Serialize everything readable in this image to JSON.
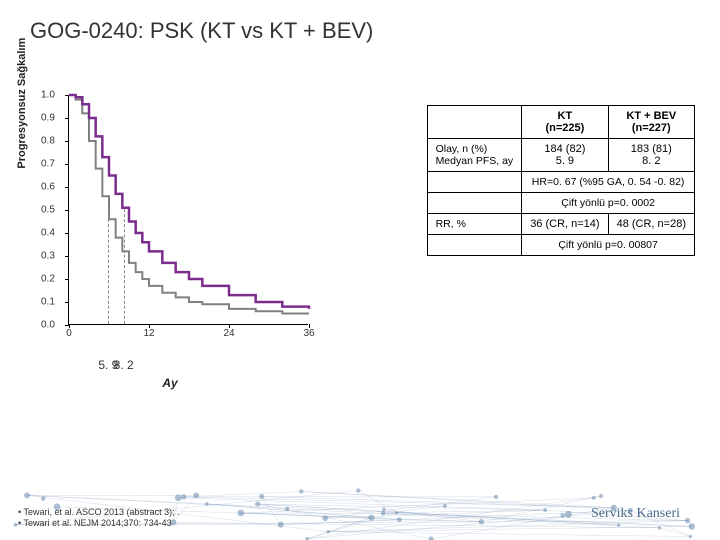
{
  "title": "GOG-0240: PSK (KT vs KT + BEV)",
  "chart": {
    "type": "kaplan-meier",
    "ylabel": "Progresyonsuz Sağkalım",
    "xlabel": "Ay",
    "xlim": [
      0,
      36
    ],
    "ylim": [
      0,
      1.0
    ],
    "xticks": [
      0,
      12,
      24,
      36
    ],
    "yticks": [
      0.0,
      0.1,
      0.2,
      0.3,
      0.4,
      0.5,
      0.6,
      0.7,
      0.8,
      0.9,
      1.0
    ],
    "series": [
      {
        "name": "KT",
        "color": "#808080",
        "line_width": 2,
        "median": 5.9,
        "points": [
          [
            0,
            1.0
          ],
          [
            1,
            0.98
          ],
          [
            2,
            0.92
          ],
          [
            3,
            0.8
          ],
          [
            4,
            0.68
          ],
          [
            5,
            0.56
          ],
          [
            6,
            0.46
          ],
          [
            7,
            0.38
          ],
          [
            8,
            0.32
          ],
          [
            9,
            0.27
          ],
          [
            10,
            0.23
          ],
          [
            11,
            0.2
          ],
          [
            12,
            0.17
          ],
          [
            14,
            0.14
          ],
          [
            16,
            0.12
          ],
          [
            18,
            0.1
          ],
          [
            20,
            0.09
          ],
          [
            24,
            0.07
          ],
          [
            28,
            0.06
          ],
          [
            32,
            0.05
          ],
          [
            36,
            0.05
          ]
        ]
      },
      {
        "name": "KT + BEV",
        "color": "#7b2d8e",
        "line_width": 2.5,
        "median": 8.2,
        "points": [
          [
            0,
            1.0
          ],
          [
            1,
            0.99
          ],
          [
            2,
            0.96
          ],
          [
            3,
            0.9
          ],
          [
            4,
            0.82
          ],
          [
            5,
            0.73
          ],
          [
            6,
            0.65
          ],
          [
            7,
            0.57
          ],
          [
            8,
            0.51
          ],
          [
            9,
            0.45
          ],
          [
            10,
            0.4
          ],
          [
            11,
            0.36
          ],
          [
            12,
            0.32
          ],
          [
            14,
            0.27
          ],
          [
            16,
            0.23
          ],
          [
            18,
            0.2
          ],
          [
            20,
            0.17
          ],
          [
            24,
            0.13
          ],
          [
            28,
            0.1
          ],
          [
            32,
            0.08
          ],
          [
            36,
            0.07
          ]
        ]
      }
    ],
    "median_labels": [
      "5. 9",
      "8. 2"
    ]
  },
  "table": {
    "col_headers": [
      "",
      "KT\n(n=225)",
      "KT + BEV\n(n=227)"
    ],
    "rows": [
      {
        "label": "Olay, n (%)\nMedyan PFS, ay",
        "cells": [
          "184 (82)\n5. 9",
          "183 (81)\n8. 2"
        ]
      },
      {
        "span": "HR=0. 67 (%95 GA, 0. 54 -0. 82)"
      },
      {
        "span": "Çift yönlü p=0. 0002"
      },
      {
        "label": "RR, %",
        "cells": [
          "36 (CR, n=14)",
          "48 (CR, n=28)"
        ]
      },
      {
        "span": "Çift yönlü p=0. 00807"
      }
    ]
  },
  "refs": [
    "Tewari, et al. ASCO 2013 (abstract 3); .",
    "Tewari et al. NEJM 2014;370: 734-43"
  ],
  "footer_right": "Serviks Kanseri",
  "deco": {
    "line_color": "#5b7fa6",
    "dot_color": "#5b7fa6"
  }
}
